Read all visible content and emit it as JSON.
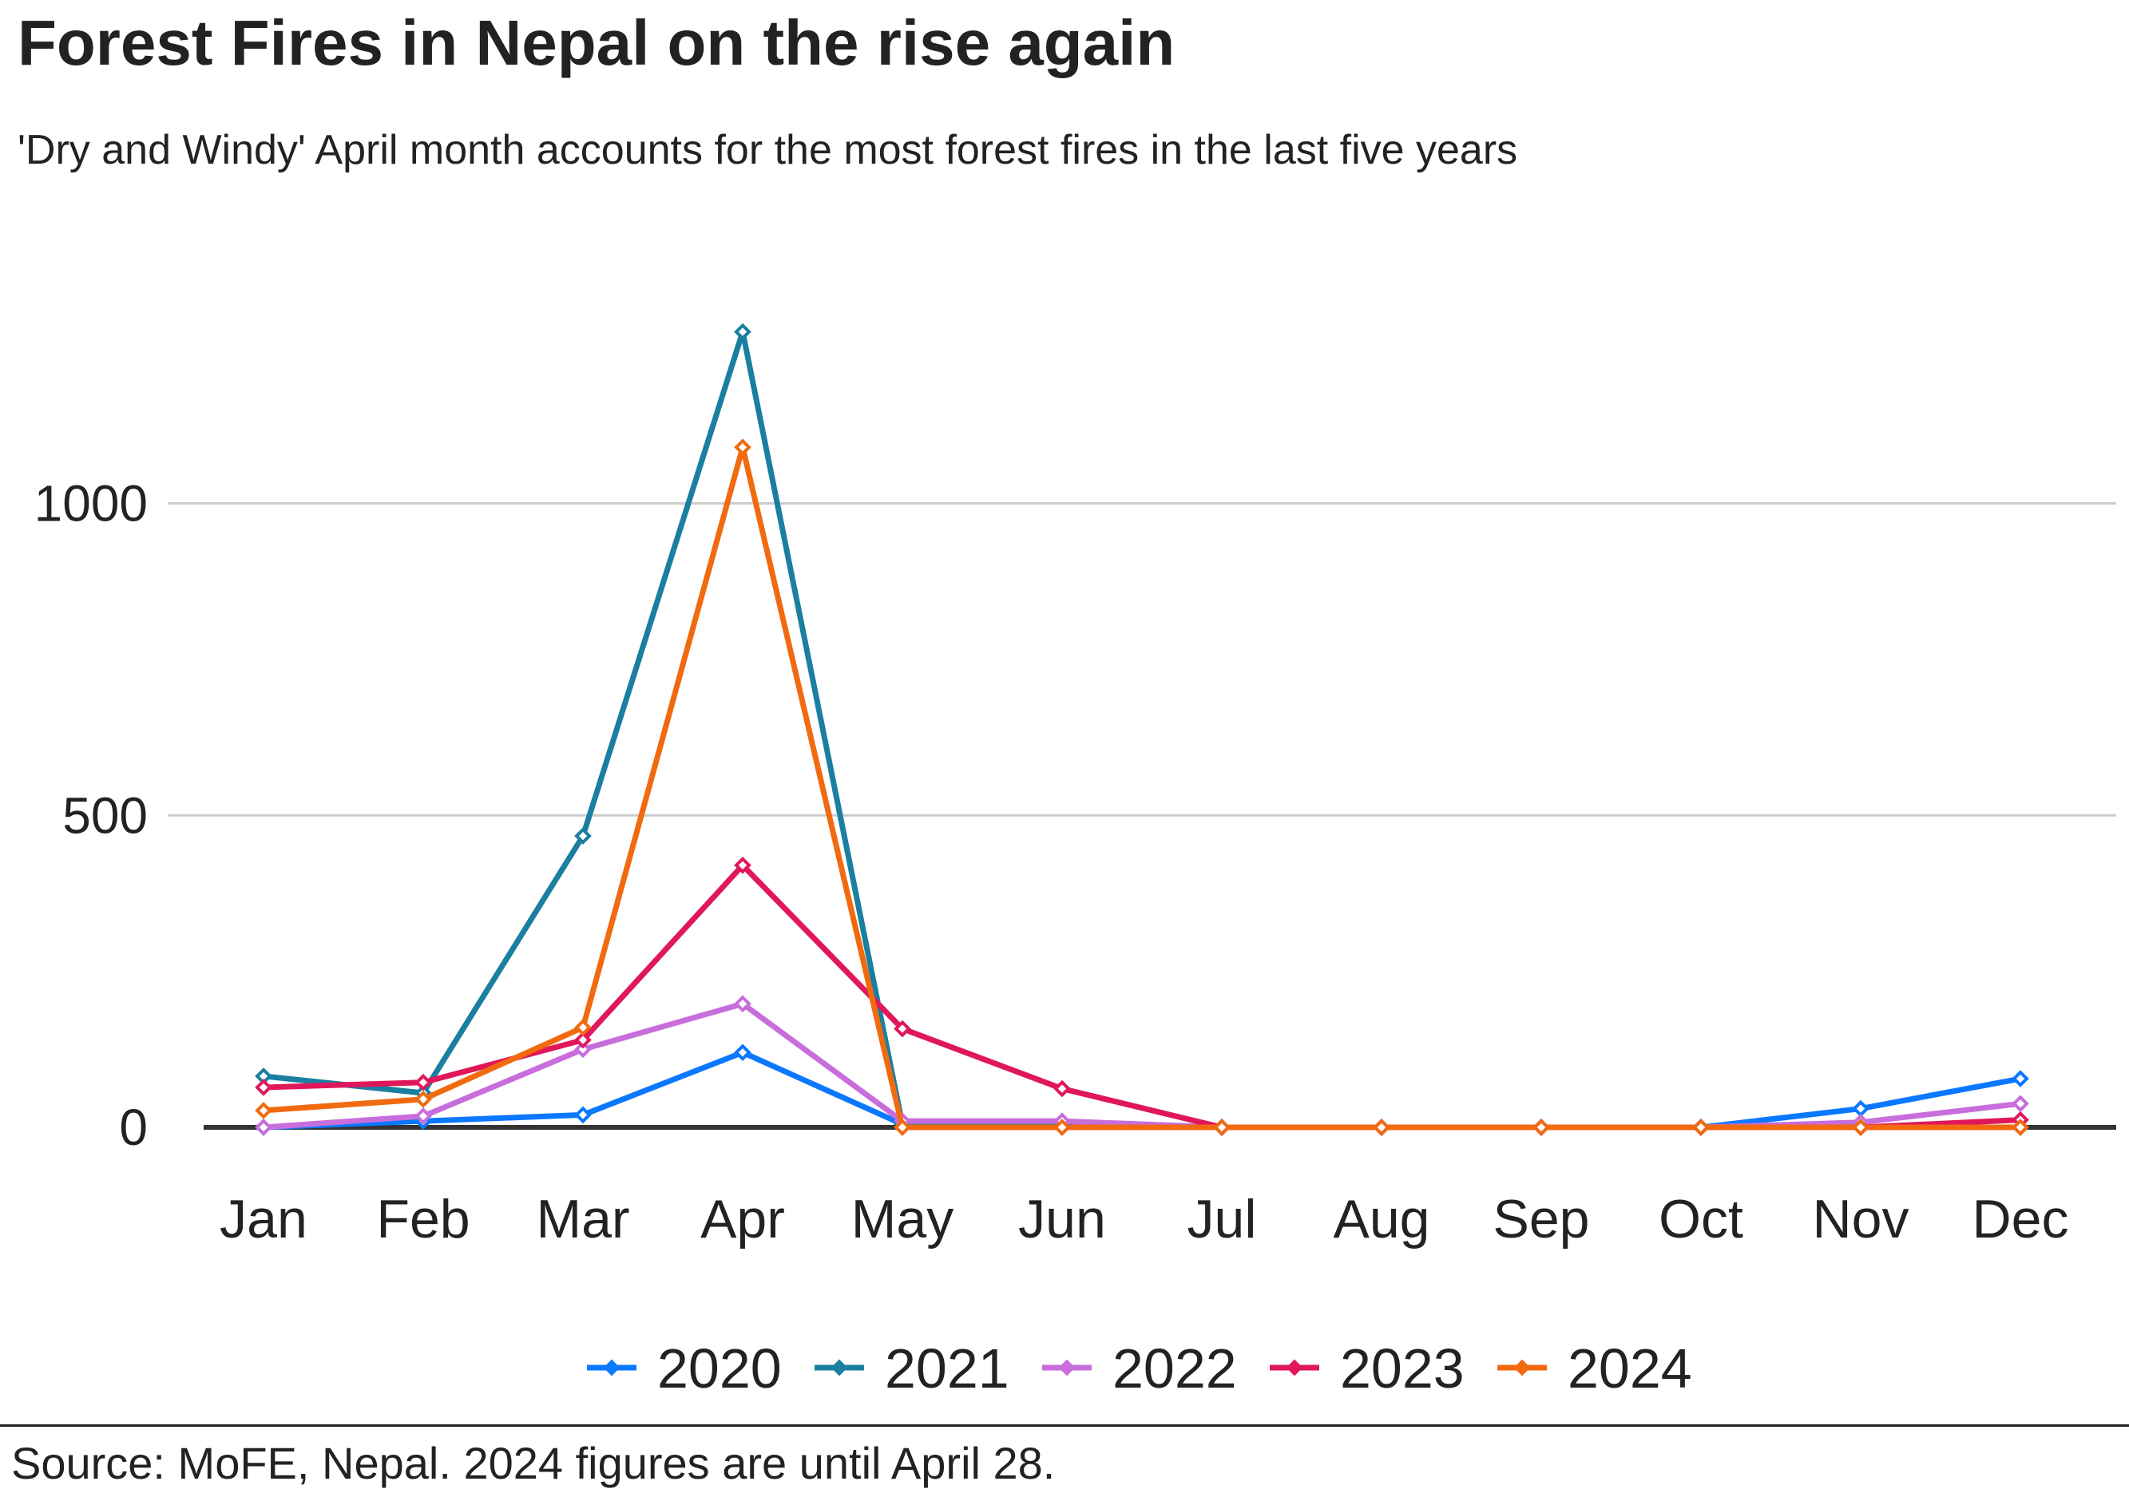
{
  "header": {
    "title": "Forest Fires in Nepal on the rise again",
    "subtitle": "'Dry and Windy' April month accounts for the most forest fires in the last five years"
  },
  "footer": {
    "source": "Source: MoFE, Nepal. 2024 figures are until April 28."
  },
  "chart_data": {
    "type": "line",
    "title": "Forest Fires in Nepal on the rise again",
    "subtitle": "'Dry and Windy' April month accounts for the most forest fires in the last five years",
    "xlabel": "",
    "ylabel": "",
    "categories": [
      "Jan",
      "Feb",
      "Mar",
      "Apr",
      "May",
      "Jun",
      "Jul",
      "Aug",
      "Sep",
      "Oct",
      "Nov",
      "Dec"
    ],
    "ylim": [
      0,
      1300
    ],
    "yticks": [
      0,
      500,
      1000
    ],
    "grid": true,
    "legend_position": "bottom",
    "series": [
      {
        "name": "2020",
        "color": "#0a78ff",
        "values": [
          0,
          10,
          20,
          120,
          5,
          3,
          0,
          0,
          0,
          0,
          30,
          78
        ]
      },
      {
        "name": "2021",
        "color": "#1a7fa0",
        "values": [
          82,
          55,
          467,
          1275,
          5,
          3,
          0,
          0,
          0,
          0,
          0,
          0
        ]
      },
      {
        "name": "2022",
        "color": "#c86ddc",
        "values": [
          0,
          18,
          125,
          198,
          10,
          10,
          0,
          0,
          0,
          0,
          8,
          38
        ]
      },
      {
        "name": "2023",
        "color": "#e0185a",
        "values": [
          64,
          72,
          140,
          420,
          158,
          62,
          0,
          0,
          0,
          0,
          0,
          12
        ]
      },
      {
        "name": "2024",
        "color": "#f26a10",
        "values": [
          27,
          45,
          160,
          1090,
          0,
          0,
          0,
          0,
          0,
          0,
          0,
          0
        ]
      }
    ]
  }
}
